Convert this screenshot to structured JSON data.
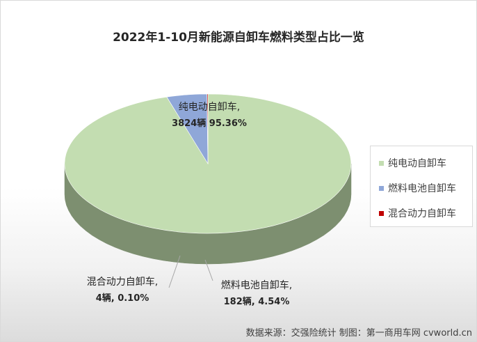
{
  "chart_data": {
    "type": "pie",
    "title": "2022年1-10月新能源自卸车燃料类型占比一览",
    "series": [
      {
        "name": "纯电动自卸车",
        "units": 3824,
        "percent": 95.36,
        "label_name": "纯电动自卸车,",
        "label_value": "3824辆 95.36%",
        "color": "#c3ddb1",
        "side_color": "#7d8f70"
      },
      {
        "name": "燃料电池自卸车",
        "units": 182,
        "percent": 4.54,
        "label_name": "燃料电池自卸车,",
        "label_value": "182辆, 4.54%",
        "color": "#8fa7d8",
        "side_color": "#4a5a7a"
      },
      {
        "name": "混合动力自卸车",
        "units": 4,
        "percent": 0.1,
        "label_name": "混合动力自卸车,",
        "label_value": "4辆, 0.10%",
        "color": "#c00000",
        "side_color": "#7a0000"
      }
    ],
    "legend_position": "right"
  },
  "source_note": "数据来源：交强险统计  制图：第一商用车网 cvworld.cn"
}
